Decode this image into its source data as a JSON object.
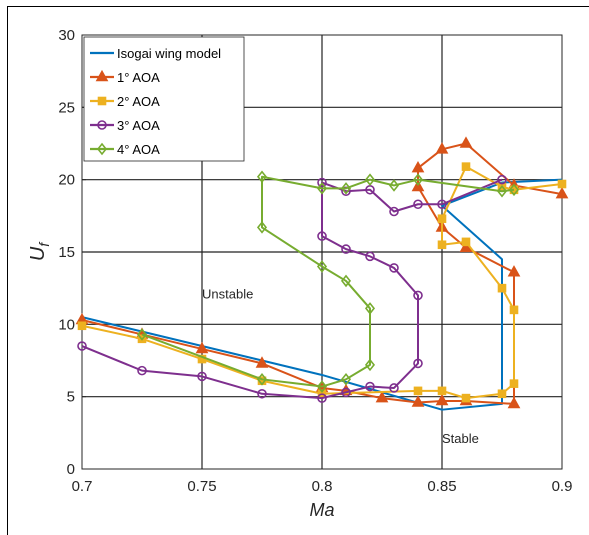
{
  "chart_data": {
    "type": "line",
    "title": "",
    "xlabel": "Ma",
    "ylabel_main": "U",
    "ylabel_sub": "f",
    "xlim": [
      0.7,
      0.9
    ],
    "ylim": [
      0,
      30
    ],
    "xticks": [
      0.7,
      0.75,
      0.8,
      0.85,
      0.9
    ],
    "xtick_labels": [
      "0.7",
      "0.75",
      "0.8",
      "0.85",
      "0.9"
    ],
    "yticks": [
      0,
      5,
      10,
      15,
      20,
      25,
      30
    ],
    "ytick_labels": [
      "0",
      "5",
      "10",
      "15",
      "20",
      "25",
      "30"
    ],
    "grid": true,
    "legend_position": "top-left",
    "annotations": [
      {
        "text": "Unstable",
        "x": 0.75,
        "y": 11.8
      },
      {
        "text": "Stable",
        "x": 0.85,
        "y": 1.8
      }
    ],
    "series": [
      {
        "name": "Isogai wing model",
        "color": "#0072BD",
        "marker": "none",
        "x": [
          0.7,
          0.8,
          0.85,
          0.875,
          0.875,
          0.85,
          0.85,
          0.875,
          0.9
        ],
        "y": [
          10.5,
          6.5,
          4.1,
          4.5,
          14.5,
          18.2,
          18.2,
          19.8,
          20.0
        ]
      },
      {
        "name": "1° AOA",
        "color": "#D95319",
        "marker": "triangle",
        "x": [
          0.9,
          0.88,
          0.86,
          0.85,
          0.84,
          0.84,
          0.85,
          0.86,
          0.88,
          0.88,
          0.86,
          0.85,
          0.84,
          0.825,
          0.81,
          0.8,
          0.775,
          0.75,
          0.725,
          0.7
        ],
        "y": [
          19.0,
          19.6,
          22.5,
          22.1,
          20.8,
          19.5,
          16.7,
          15.3,
          13.6,
          4.5,
          4.7,
          4.7,
          4.6,
          4.9,
          5.4,
          5.6,
          7.3,
          8.3,
          9.3,
          10.3
        ]
      },
      {
        "name": "2° AOA",
        "color": "#EDB120",
        "marker": "square",
        "x": [
          0.9,
          0.88,
          0.875,
          0.86,
          0.85,
          0.85,
          0.86,
          0.875,
          0.88,
          0.88,
          0.875,
          0.86,
          0.85,
          0.84,
          0.8,
          0.775,
          0.75,
          0.725,
          0.7
        ],
        "y": [
          19.7,
          19.3,
          19.5,
          20.9,
          17.3,
          15.5,
          15.7,
          12.5,
          11.0,
          5.9,
          5.2,
          4.9,
          5.4,
          5.4,
          5.2,
          6.1,
          7.6,
          9.0,
          9.9
        ]
      },
      {
        "name": "3° AOA",
        "color": "#7E2F8E",
        "marker": "circle",
        "x": [
          0.875,
          0.85,
          0.84,
          0.83,
          0.82,
          0.81,
          0.8,
          0.8,
          0.81,
          0.82,
          0.83,
          0.84,
          0.84,
          0.83,
          0.82,
          0.81,
          0.8,
          0.775,
          0.75,
          0.725,
          0.7
        ],
        "y": [
          20.0,
          18.3,
          18.3,
          17.8,
          19.3,
          19.2,
          19.8,
          16.1,
          15.2,
          14.7,
          13.9,
          12.0,
          7.3,
          5.6,
          5.7,
          5.3,
          4.9,
          5.2,
          6.4,
          6.8,
          8.5
        ]
      },
      {
        "name": "4° AOA",
        "color": "#77AC30",
        "marker": "diamond",
        "x": [
          0.88,
          0.875,
          0.84,
          0.83,
          0.82,
          0.81,
          0.8,
          0.775,
          0.775,
          0.8,
          0.81,
          0.82,
          0.82,
          0.81,
          0.8,
          0.775,
          0.725
        ],
        "y": [
          19.3,
          19.2,
          20.0,
          19.6,
          20.0,
          19.4,
          19.4,
          20.2,
          16.7,
          14.0,
          13.0,
          11.1,
          7.2,
          6.2,
          5.7,
          6.2,
          9.3
        ]
      }
    ]
  }
}
